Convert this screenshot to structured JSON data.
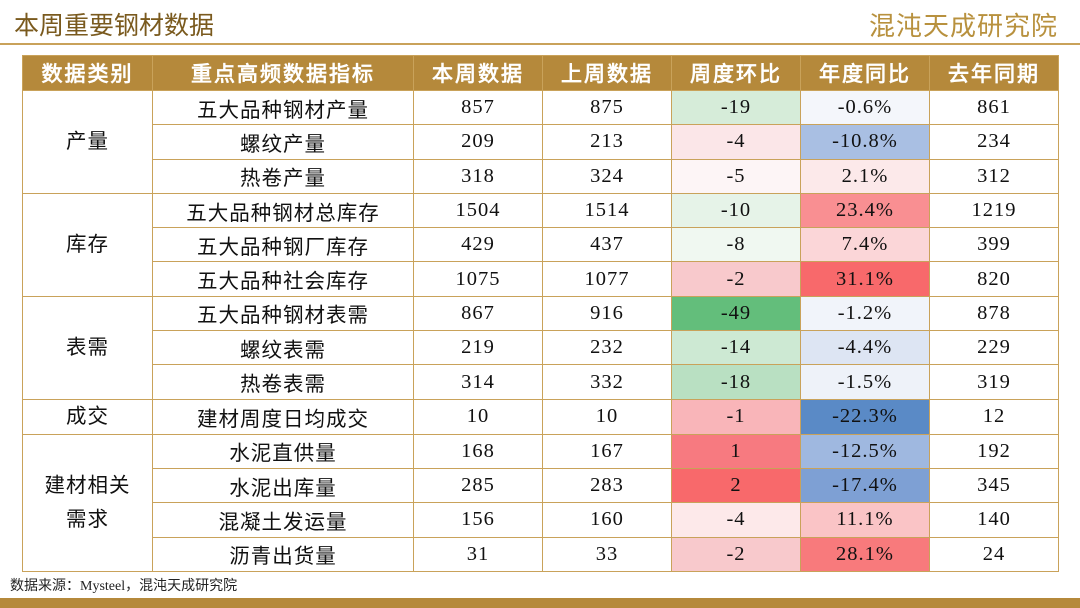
{
  "header": {
    "title": "本周重要钢材数据",
    "logo": "混沌天成研究院"
  },
  "table": {
    "columns": [
      "数据类别",
      "重点高频数据指标",
      "本周数据",
      "上周数据",
      "周度环比",
      "年度同比",
      "去年同期"
    ],
    "groups": [
      {
        "label": "产量",
        "rows": [
          {
            "cells": [
              "五大品种钢材产量",
              "857",
              "875",
              "-19",
              "-0.6%",
              "861"
            ],
            "colors": [
              "#d6ecd9",
              "#f4f6fb"
            ]
          },
          {
            "cells": [
              "螺纹产量",
              "209",
              "213",
              "-4",
              "-10.8%",
              "234"
            ],
            "colors": [
              "#fbe6e8",
              "#a9bfe3"
            ]
          },
          {
            "cells": [
              "热卷产量",
              "318",
              "324",
              "-5",
              "2.1%",
              "312"
            ],
            "colors": [
              "#fdf5f6",
              "#fce9ea"
            ]
          }
        ]
      },
      {
        "label": "库存",
        "rows": [
          {
            "cells": [
              "五大品种钢材总库存",
              "1504",
              "1514",
              "-10",
              "23.4%",
              "1219"
            ],
            "colors": [
              "#e6f3e8",
              "#f98f92"
            ]
          },
          {
            "cells": [
              "五大品种钢厂库存",
              "429",
              "437",
              "-8",
              "7.4%",
              "399"
            ],
            "colors": [
              "#f0f8f1",
              "#fbd6d8"
            ]
          },
          {
            "cells": [
              "五大品种社会库存",
              "1075",
              "1077",
              "-2",
              "31.1%",
              "820"
            ],
            "colors": [
              "#f8c9cc",
              "#f8696b"
            ]
          }
        ]
      },
      {
        "label": "表需",
        "rows": [
          {
            "cells": [
              "五大品种钢材表需",
              "867",
              "916",
              "-49",
              "-1.2%",
              "878"
            ],
            "colors": [
              "#63be7b",
              "#f1f4fa"
            ]
          },
          {
            "cells": [
              "螺纹表需",
              "219",
              "232",
              "-14",
              "-4.4%",
              "229"
            ],
            "colors": [
              "#cde9d3",
              "#dde5f3"
            ]
          },
          {
            "cells": [
              "热卷表需",
              "314",
              "332",
              "-18",
              "-1.5%",
              "319"
            ],
            "colors": [
              "#b9e0c2",
              "#eef2f9"
            ]
          }
        ]
      },
      {
        "label": "成交",
        "rows": [
          {
            "cells": [
              "建材周度日均成交",
              "10",
              "10",
              "-1",
              "-22.3%",
              "12"
            ],
            "colors": [
              "#f9b5b9",
              "#5a8ac6"
            ]
          }
        ]
      },
      {
        "label": "建材相关需求",
        "rows": [
          {
            "cells": [
              "水泥直供量",
              "168",
              "167",
              "1",
              "-12.5%",
              "192"
            ],
            "colors": [
              "#f77a80",
              "#9fb8e0"
            ]
          },
          {
            "cells": [
              "水泥出库量",
              "285",
              "283",
              "2",
              "-17.4%",
              "345"
            ],
            "colors": [
              "#f8696b",
              "#7ea0d4"
            ]
          },
          {
            "cells": [
              "混凝土发运量",
              "156",
              "160",
              "-4",
              "11.1%",
              "140"
            ],
            "colors": [
              "#fde9ea",
              "#fac4c6"
            ]
          },
          {
            "cells": [
              "沥青出货量",
              "31",
              "33",
              "-2",
              "28.1%",
              "24"
            ],
            "colors": [
              "#f8c9cc",
              "#f87a7c"
            ]
          }
        ]
      }
    ]
  },
  "source": "数据来源：Mysteel，混沌天成研究院"
}
